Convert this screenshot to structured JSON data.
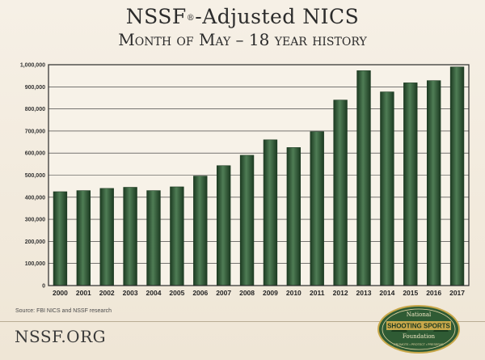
{
  "header": {
    "title_main": "NSSF",
    "title_reg": "®",
    "title_rest": "-Adjusted NICS",
    "subtitle": "Month of May – 18 year history"
  },
  "source": "Source: FBI NICS and NSSF research",
  "footer": {
    "site": "NSSF.ORG"
  },
  "logo": {
    "top": "National",
    "middle": "SHOOTING SPORTS",
    "bottom": "Foundation",
    "tagline": "PROMOTE • PROTECT • PRESERVE"
  },
  "colors": {
    "bar": "#2f5b34",
    "bar_dark": "#1c3a21",
    "bar_light": "#4f7d55",
    "plot_bg": "#f7f2e8",
    "grid": "#2a2a2a"
  },
  "chart_data": {
    "type": "bar",
    "title": "NSSF®-Adjusted NICS",
    "subtitle": "Month of May – 18 year history",
    "xlabel": "",
    "ylabel": "",
    "ylim": [
      0,
      1000000
    ],
    "yticks": [
      0,
      100000,
      200000,
      300000,
      400000,
      500000,
      600000,
      700000,
      800000,
      900000,
      1000000
    ],
    "ytick_labels": [
      "0",
      "100,000",
      "200,000",
      "300,000",
      "400,000",
      "500,000",
      "600,000",
      "700,000",
      "800,000",
      "900,000",
      "1,000,000"
    ],
    "grid": true,
    "categories": [
      "2000",
      "2001",
      "2002",
      "2003",
      "2004",
      "2005",
      "2006",
      "2007",
      "2008",
      "2009",
      "2010",
      "2011",
      "2012",
      "2013",
      "2014",
      "2015",
      "2016",
      "2017"
    ],
    "values": [
      425000,
      430000,
      440000,
      445000,
      430000,
      447000,
      496000,
      543000,
      590000,
      660000,
      625000,
      697000,
      840000,
      973000,
      877000,
      918000,
      928000,
      990000
    ]
  }
}
